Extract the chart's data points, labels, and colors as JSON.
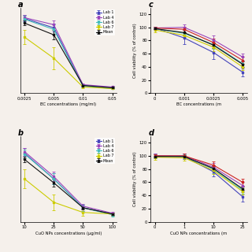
{
  "panel_a": {
    "label": "a",
    "xlabel": "BC concentrations (mg/ml)",
    "ylabel": "",
    "xticklabels": [
      "0.0025",
      "0.005",
      "0.01",
      "0.05"
    ],
    "x": [
      1,
      2,
      3,
      4
    ],
    "lines": {
      "Lab 1": {
        "color": "#4444bb",
        "y": [
          96,
          84,
          10,
          7
        ],
        "yerr": [
          4,
          5,
          2,
          1
        ]
      },
      "Lab 4": {
        "color": "#9944bb",
        "y": [
          97,
          88,
          11,
          8
        ],
        "yerr": [
          3,
          5,
          2,
          1
        ]
      },
      "Lab 6": {
        "color": "#44bbbb",
        "y": [
          95,
          82,
          9,
          6
        ],
        "yerr": [
          4,
          6,
          2,
          1
        ]
      },
      "Lab 7": {
        "color": "#cccc00",
        "y": [
          72,
          45,
          8,
          6
        ],
        "yerr": [
          9,
          14,
          2,
          1
        ]
      },
      "Mean": {
        "color": "#111111",
        "y": [
          90,
          75,
          10,
          7
        ],
        "yerr": [
          3,
          6,
          1,
          1
        ]
      }
    },
    "ylim": [
      0,
      110
    ],
    "show_yaxis": false,
    "show_legend": true
  },
  "panel_b": {
    "label": "b",
    "xlabel": "CuO NPs concentrations (μg/ml)",
    "ylabel": "",
    "xticklabels": [
      "10",
      "25",
      "50",
      "100"
    ],
    "x": [
      1,
      2,
      3,
      4
    ],
    "lines": {
      "Lab 1": {
        "color": "#4444bb",
        "y": [
          88,
          55,
          18,
          10
        ],
        "yerr": [
          7,
          7,
          4,
          2
        ]
      },
      "Lab 4": {
        "color": "#9944bb",
        "y": [
          90,
          58,
          20,
          11
        ],
        "yerr": [
          5,
          6,
          3,
          2
        ]
      },
      "Lab 6": {
        "color": "#44bbbb",
        "y": [
          87,
          55,
          18,
          9
        ],
        "yerr": [
          6,
          7,
          4,
          2
        ]
      },
      "Lab 7": {
        "color": "#cccc00",
        "y": [
          55,
          25,
          12,
          10
        ],
        "yerr": [
          12,
          10,
          4,
          2
        ]
      },
      "Mean": {
        "color": "#111111",
        "y": [
          80,
          50,
          18,
          10
        ],
        "yerr": [
          4,
          5,
          2,
          1
        ]
      }
    },
    "ylim": [
      0,
      110
    ],
    "show_yaxis": false,
    "show_legend": true
  },
  "panel_c": {
    "label": "c",
    "xlabel": "BC concentrations (m",
    "ylabel": "Cell viability (% of control)",
    "xticklabels": [
      "0",
      "0.001",
      "0.0025",
      "0.005"
    ],
    "x": [
      1,
      2,
      3,
      4
    ],
    "lines": {
      "Lab 1": {
        "color": "#4444bb",
        "y": [
          99,
          84,
          62,
          32
        ],
        "yerr": [
          2,
          9,
          10,
          6
        ]
      },
      "Lab 4": {
        "color": "#9944bb",
        "y": [
          99,
          100,
          81,
          55
        ],
        "yerr": [
          2,
          4,
          7,
          5
        ]
      },
      "Lab 6": {
        "color": "#44bbbb",
        "y": [
          98,
          91,
          74,
          45
        ],
        "yerr": [
          2,
          6,
          7,
          5
        ]
      },
      "Lab 7": {
        "color": "#cccc00",
        "y": [
          96,
          88,
          70,
          40
        ],
        "yerr": [
          3,
          5,
          6,
          5
        ]
      },
      "Lab 5": {
        "color": "#cc2222",
        "y": [
          99,
          97,
          77,
          50
        ],
        "yerr": [
          2,
          4,
          6,
          5
        ]
      },
      "Mean": {
        "color": "#111111",
        "y": [
          98,
          92,
          73,
          44
        ],
        "yerr": [
          1,
          4,
          4,
          4
        ]
      }
    },
    "ylim": [
      0,
      130
    ],
    "yticks": [
      0,
      20,
      40,
      60,
      80,
      100,
      120
    ],
    "show_yaxis": true,
    "show_legend": false
  },
  "panel_d": {
    "label": "d",
    "xlabel": "CuO NPs concentrations (m",
    "ylabel": "Cell viability (% of control)",
    "xticklabels": [
      "0",
      "1",
      "10",
      "25"
    ],
    "x": [
      1,
      2,
      3,
      4
    ],
    "lines": {
      "Lab 1": {
        "color": "#4444bb",
        "y": [
          100,
          99,
          76,
          38
        ],
        "yerr": [
          3,
          4,
          7,
          7
        ]
      },
      "Lab 4": {
        "color": "#9944bb",
        "y": [
          100,
          100,
          83,
          55
        ],
        "yerr": [
          3,
          3,
          6,
          6
        ]
      },
      "Lab 6": {
        "color": "#44bbbb",
        "y": [
          99,
          99,
          80,
          48
        ],
        "yerr": [
          3,
          3,
          6,
          5
        ]
      },
      "Lab 7": {
        "color": "#cccc00",
        "y": [
          98,
          97,
          78,
          46
        ],
        "yerr": [
          4,
          4,
          6,
          5
        ]
      },
      "Lab 5": {
        "color": "#cc2222",
        "y": [
          100,
          100,
          86,
          60
        ],
        "yerr": [
          2,
          3,
          5,
          5
        ]
      },
      "Mean": {
        "color": "#111111",
        "y": [
          99,
          99,
          81,
          50
        ],
        "yerr": [
          1,
          2,
          4,
          3
        ]
      }
    },
    "ylim": [
      0,
      130
    ],
    "yticks": [
      0,
      20,
      40,
      60,
      80,
      100,
      120
    ],
    "show_yaxis": true,
    "show_legend": false
  },
  "bg_color": "#f5f0eb"
}
